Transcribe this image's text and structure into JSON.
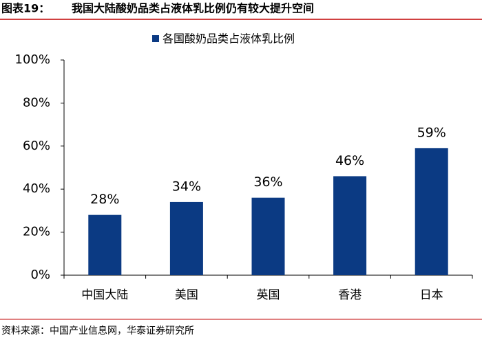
{
  "chart_data": {
    "type": "bar",
    "figure_number": "图表19：",
    "title": "我国大陆酸奶品类占液体乳比例仍有较大提升空间",
    "categories": [
      "中国大陆",
      "美国",
      "英国",
      "香港",
      "日本"
    ],
    "series": [
      {
        "name": "各国酸奶品类占液体乳比例",
        "color": "#0b3a83",
        "values": [
          28,
          34,
          36,
          46,
          59
        ],
        "value_labels": [
          "28%",
          "34%",
          "36%",
          "46%",
          "59%"
        ]
      }
    ],
    "ylim": [
      0,
      100
    ],
    "yticks": [
      {
        "value": 0,
        "label": "0%"
      },
      {
        "value": 20,
        "label": "20%"
      },
      {
        "value": 40,
        "label": "40%"
      },
      {
        "value": 60,
        "label": "60%"
      },
      {
        "value": 80,
        "label": "80%"
      },
      {
        "value": 100,
        "label": "100%"
      }
    ],
    "legend": "top",
    "source": "资料来源：中国产业信息网，华泰证券研究所"
  }
}
